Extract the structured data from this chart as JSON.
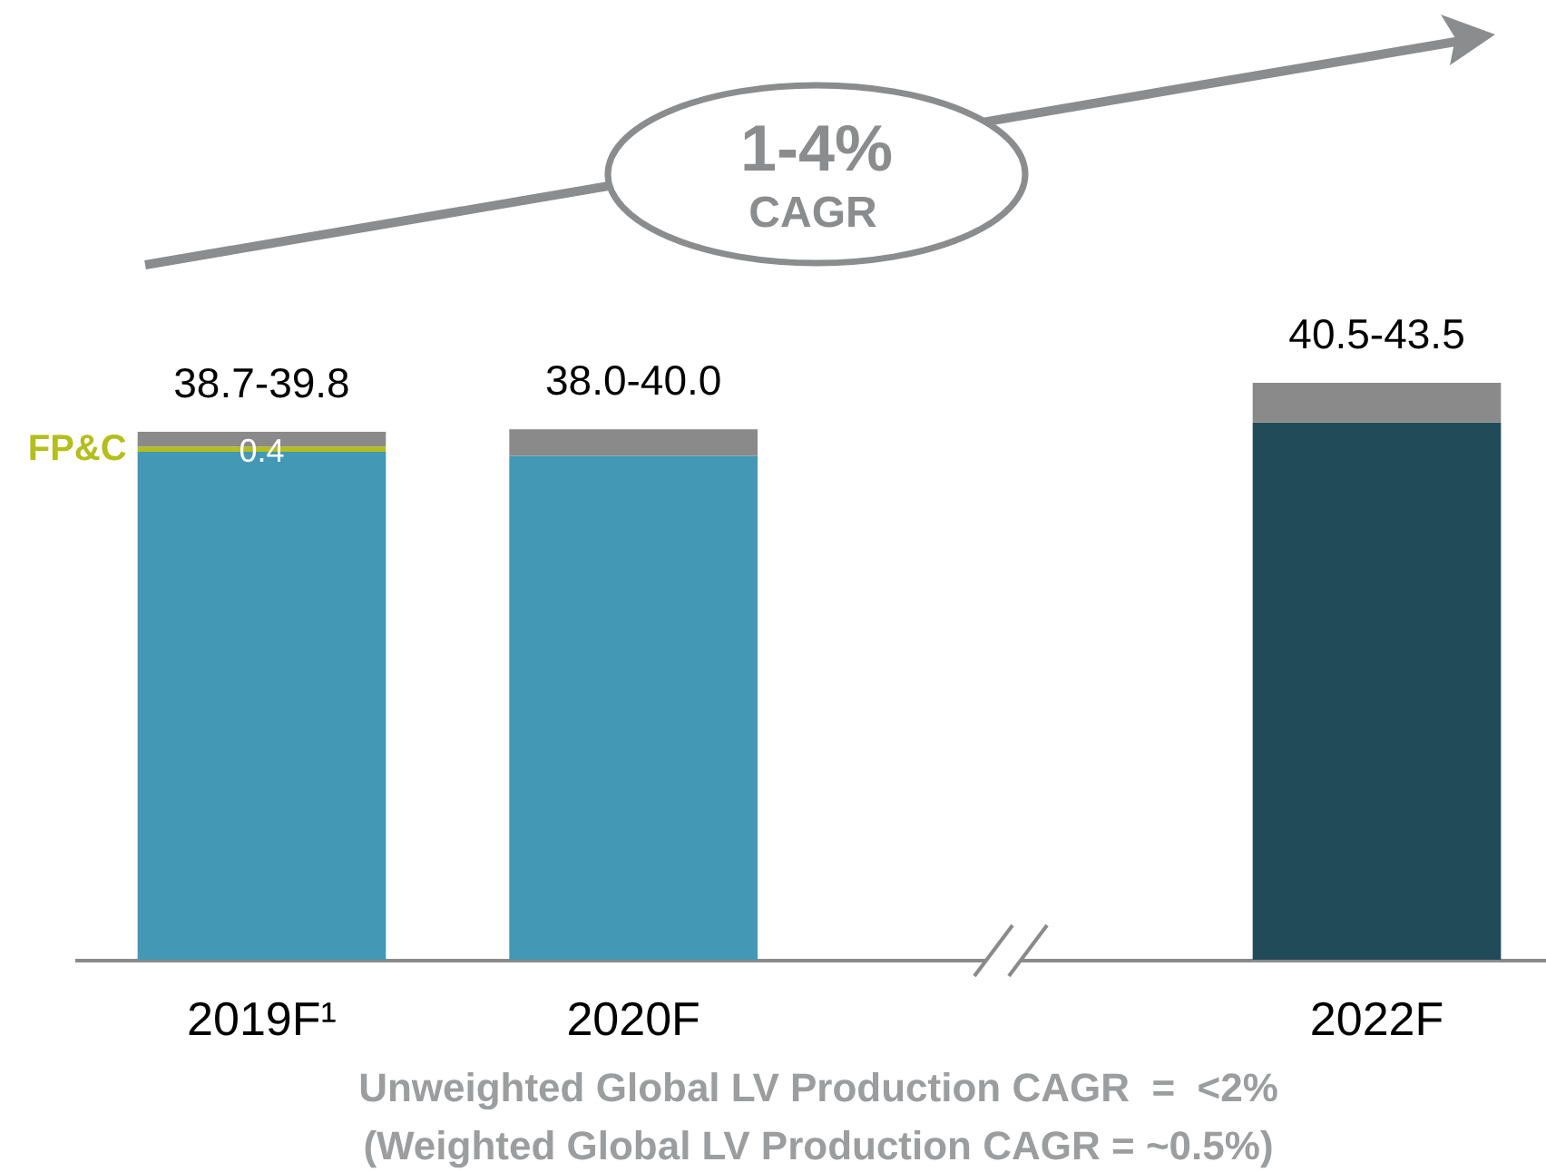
{
  "chart_data": {
    "type": "bar",
    "stacked": true,
    "tick_labels": "x",
    "categories": [
      "2019F¹",
      "2020F",
      null,
      "2022F"
    ],
    "series": [
      {
        "colors": [
          "#4398b5",
          "#4398b5",
          null,
          "#224b5a"
        ],
        "values": [
          38.3,
          38.0,
          null,
          40.5
        ]
      },
      {
        "name": "FP&C",
        "color": "#b4be1c",
        "values": [
          0.4,
          null,
          null,
          null
        ],
        "value_labels": [
          "0.4",
          null,
          null,
          null
        ]
      },
      {
        "color": "#8a8a8a",
        "values": [
          1.1,
          2.0,
          null,
          3.0
        ]
      }
    ],
    "totals": [
      "38.7-39.8",
      "38.0-40.0",
      null,
      "40.5-43.5"
    ],
    "annotations": [
      "1-4%",
      "CAGR",
      "Unweighted Global LV Production CAGR  =  <2%",
      "(Weighted Global LV Production CAGR = ~0.5%)"
    ]
  }
}
